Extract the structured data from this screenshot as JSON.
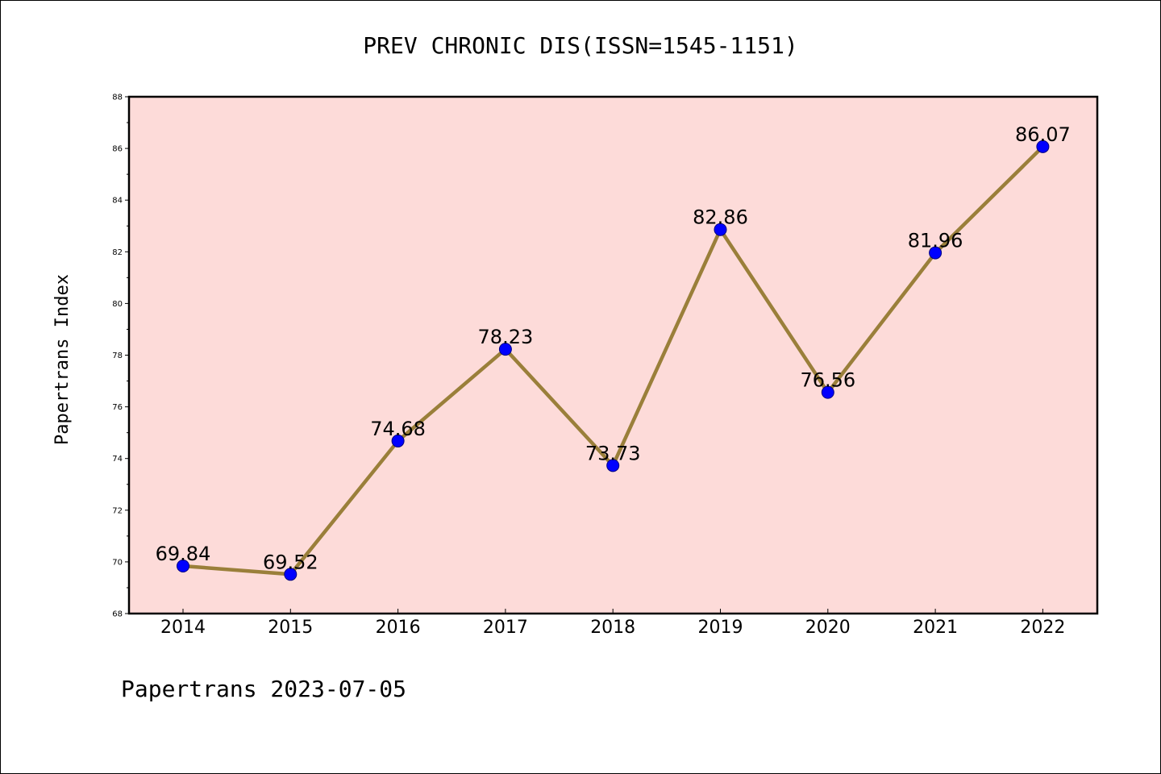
{
  "chart_data": {
    "type": "line",
    "title": "PREV CHRONIC DIS(ISSN=1545-1151)",
    "ylabel": "Papertrans Index",
    "xlabel": "",
    "footer": "Papertrans 2023-07-05",
    "categories": [
      "2014",
      "2015",
      "2016",
      "2017",
      "2018",
      "2019",
      "2020",
      "2021",
      "2022"
    ],
    "values": [
      69.84,
      69.52,
      74.68,
      78.23,
      73.73,
      82.86,
      76.56,
      81.96,
      86.07
    ],
    "data_labels": [
      "69.84",
      "69.52",
      "74.68",
      "78.23",
      "73.73",
      "82.86",
      "76.56",
      "81.96",
      "86.07"
    ],
    "ylim": [
      68,
      88
    ],
    "yticks": [
      68,
      70,
      72,
      74,
      76,
      78,
      80,
      82,
      84,
      86,
      88
    ],
    "ytick_labels": [
      "68",
      "70",
      "72",
      "74",
      "76",
      "78",
      "80",
      "82",
      "84",
      "86",
      "88"
    ],
    "minor_ytick_step": 1,
    "grid": false,
    "legend": "none",
    "colors": {
      "plot_background": "#fddbd9",
      "line": "#9a7f3a",
      "marker_fill": "#0000ff",
      "marker_edge": "#000080",
      "axes": "#000000"
    }
  }
}
